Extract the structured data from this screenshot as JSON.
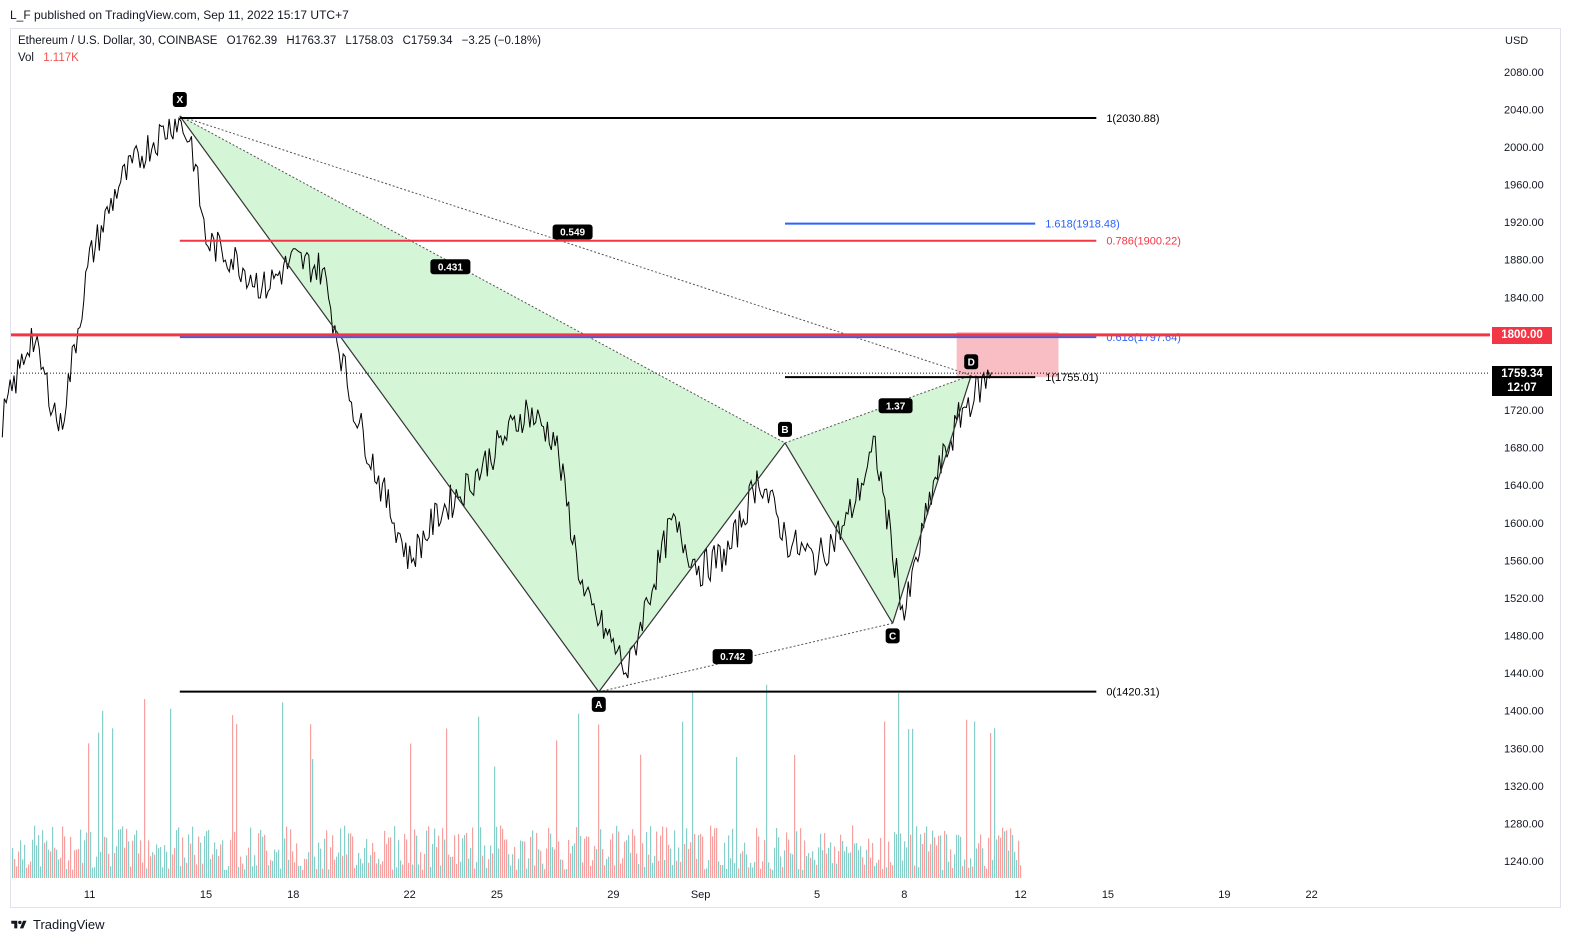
{
  "header": {
    "published": "L_F published on TradingView.com, Sep 11, 2022 15:17 UTC+7"
  },
  "legend": {
    "symbol": "Ethereum / U.S. Dollar, 30, COINBASE",
    "open": "O1762.39",
    "high": "H1763.37",
    "low": "L1758.03",
    "close": "C1759.34",
    "change": "−3.25 (−0.18%)",
    "vol_label": "Vol",
    "vol_value": "1.117K"
  },
  "footer": {
    "brand": "TradingView"
  },
  "colors": {
    "candle_black": "#000000",
    "harmonic_fill": "#ccf5d0",
    "red_line": "#f23645",
    "blue_line": "#2962ff",
    "target_zone": "#f7b7be",
    "vol_up": "#26a69a",
    "vol_down": "#ef5350"
  },
  "chart_data": {
    "type": "line",
    "title": "",
    "currency": "USD",
    "ylim": [
      1220,
      2100
    ],
    "y_ticks": [
      2080,
      2040,
      2000,
      1960,
      1920,
      1880,
      1840,
      1800,
      1760,
      1720,
      1680,
      1640,
      1600,
      1560,
      1520,
      1480,
      1440,
      1400,
      1360,
      1320,
      1280,
      1240
    ],
    "x_ticks": [
      "11",
      "15",
      "18",
      "22",
      "25",
      "29",
      "Sep",
      "5",
      "8",
      "12",
      "15",
      "19",
      "22"
    ],
    "x_tick_days": [
      11,
      15,
      18,
      22,
      25,
      29,
      32,
      36,
      39,
      43,
      46,
      50,
      53
    ],
    "series": [
      {
        "x": [
          8,
          9,
          10,
          11,
          12,
          13,
          14,
          14.5,
          15,
          16,
          17,
          18,
          19,
          19.5,
          20,
          21,
          22,
          23,
          24,
          25,
          26,
          27,
          28,
          29,
          29.5,
          30,
          31,
          32,
          33,
          34,
          35,
          36,
          37,
          38,
          39,
          40,
          41,
          42
        ],
        "y": [
          1710,
          1800,
          1700,
          1880,
          1960,
          2000,
          2030,
          2005,
          1900,
          1880,
          1850,
          1880,
          1870,
          1800,
          1730,
          1640,
          1560,
          1610,
          1640,
          1680,
          1720,
          1690,
          1520,
          1470,
          1440,
          1500,
          1600,
          1550,
          1570,
          1650,
          1580,
          1560,
          1600,
          1680,
          1500,
          1640,
          1720,
          1760
        ]
      }
    ],
    "harmonic_points": [
      {
        "label": "X",
        "x": 14.1,
        "y": 2033
      },
      {
        "label": "A",
        "x": 28.5,
        "y": 1420
      },
      {
        "label": "B",
        "x": 34.9,
        "y": 1685
      },
      {
        "label": "C",
        "x": 38.6,
        "y": 1493
      },
      {
        "label": "D",
        "x": 41.3,
        "y": 1757
      }
    ],
    "ratios": [
      {
        "label": "0.431",
        "x": 23.4,
        "y": 1872
      },
      {
        "label": "0.549",
        "x": 27.6,
        "y": 1909
      },
      {
        "label": "1.37",
        "x": 38.7,
        "y": 1724
      },
      {
        "label": "0.742",
        "x": 33.1,
        "y": 1457
      }
    ],
    "levels": [
      {
        "label": "1(2030.88)",
        "y": 2030.88,
        "x0": 14.1,
        "x1": 45.6,
        "color": "#000000"
      },
      {
        "label": "1.618(1918.48)",
        "y": 1918.48,
        "x0": 34.9,
        "x1": 43.5,
        "color": "#2962ff"
      },
      {
        "label": "0.786(1900.22)",
        "y": 1900.22,
        "x0": 14.1,
        "x1": 45.6,
        "color": "#f23645"
      },
      {
        "label": "0.618(1797.64)",
        "y": 1797.64,
        "x0": 14.1,
        "x1": 45.6,
        "color": "#2962ff"
      },
      {
        "label": "1(1755.01)",
        "y": 1755.01,
        "x0": 34.9,
        "x1": 43.5,
        "color": "#000000"
      },
      {
        "label": "0(1420.31)",
        "y": 1420.31,
        "x0": 14.1,
        "x1": 45.6,
        "color": "#000000"
      }
    ],
    "horizontal_line": {
      "label": "1800.00",
      "y": 1800.0
    },
    "last_price": {
      "label": "1759.34",
      "countdown": "12:07",
      "y": 1759.34
    },
    "target_zone": {
      "x0": 40.8,
      "x1": 44.3,
      "y0": 1755,
      "y1": 1803
    }
  }
}
